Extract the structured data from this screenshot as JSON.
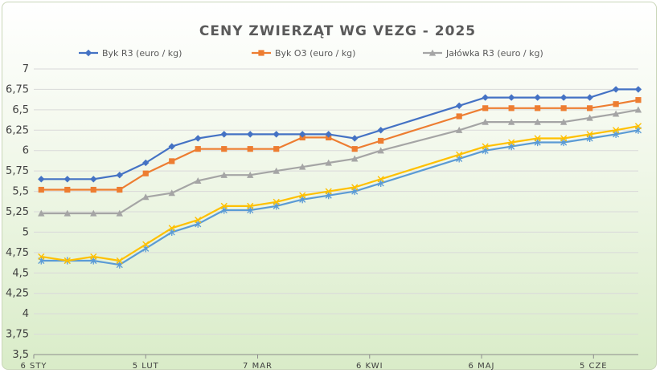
{
  "chart_data": {
    "type": "line",
    "title": "CENY ZWIERZĄT WG VEZG - 2025",
    "xlabel": "",
    "ylabel": "",
    "ylim": [
      3.5,
      7
    ],
    "grid": "horizontal",
    "legend_position": "top",
    "y_ticks": [
      "3,5",
      "3,75",
      "4",
      "4,25",
      "4,5",
      "4,75",
      "5",
      "5,25",
      "5,5",
      "5,75",
      "6",
      "6,25",
      "6,5",
      "6,75",
      "7"
    ],
    "x_ticks": [
      {
        "label": "6 STY",
        "x": "2025-01-06"
      },
      {
        "label": "5 LUT",
        "x": "2025-02-05"
      },
      {
        "label": "7 MAR",
        "x": "2025-03-07"
      },
      {
        "label": "6 KWI",
        "x": "2025-04-06"
      },
      {
        "label": "6 MAJ",
        "x": "2025-05-06"
      },
      {
        "label": "5 CZE",
        "x": "2025-06-05"
      }
    ],
    "x_range": [
      "2025-01-06",
      "2025-06-17"
    ],
    "x": [
      "2025-01-08",
      "2025-01-15",
      "2025-01-22",
      "2025-01-29",
      "2025-02-05",
      "2025-02-12",
      "2025-02-19",
      "2025-02-26",
      "2025-03-05",
      "2025-03-12",
      "2025-03-19",
      "2025-03-26",
      "2025-04-02",
      "2025-04-09",
      "2025-04-30",
      "2025-05-07",
      "2025-05-14",
      "2025-05-21",
      "2025-05-28",
      "2025-06-04",
      "2025-06-11",
      "2025-06-17"
    ],
    "series": [
      {
        "name": "Byk R3 (euro / kg)",
        "color": "#4472c4",
        "marker": "diamond",
        "values": [
          5.65,
          5.65,
          5.65,
          5.7,
          5.85,
          6.05,
          6.15,
          6.2,
          6.2,
          6.2,
          6.2,
          6.2,
          6.15,
          6.25,
          6.55,
          6.65,
          6.65,
          6.65,
          6.65,
          6.65,
          6.75,
          6.75
        ]
      },
      {
        "name": "Byk O3 (euro / kg)",
        "color": "#ed7d31",
        "marker": "square",
        "values": [
          5.52,
          5.52,
          5.52,
          5.52,
          5.72,
          5.87,
          6.02,
          6.02,
          6.02,
          6.02,
          6.16,
          6.16,
          6.02,
          6.12,
          6.42,
          6.52,
          6.52,
          6.52,
          6.52,
          6.52,
          6.57,
          6.62
        ]
      },
      {
        "name": "Jałówka R3 (euro / kg)",
        "color": "#a5a5a5",
        "marker": "triangle",
        "values": [
          5.23,
          5.23,
          5.23,
          5.23,
          5.43,
          5.48,
          5.63,
          5.7,
          5.7,
          5.75,
          5.8,
          5.85,
          5.9,
          6.0,
          6.25,
          6.35,
          6.35,
          6.35,
          6.35,
          6.4,
          6.45,
          6.5
        ]
      },
      {
        "color": "#ffc000",
        "marker": "x",
        "values": [
          4.7,
          4.65,
          4.7,
          4.65,
          4.85,
          5.05,
          5.15,
          5.32,
          5.32,
          5.37,
          5.45,
          5.5,
          5.55,
          5.65,
          5.95,
          6.05,
          6.1,
          6.15,
          6.15,
          6.2,
          6.25,
          6.3
        ]
      },
      {
        "color": "#5b9bd5",
        "marker": "asterisk",
        "values": [
          4.65,
          4.65,
          4.65,
          4.6,
          4.8,
          5.0,
          5.1,
          5.27,
          5.27,
          5.32,
          5.4,
          5.45,
          5.5,
          5.6,
          5.9,
          6.0,
          6.05,
          6.1,
          6.1,
          6.15,
          6.2,
          6.25
        ]
      }
    ]
  }
}
